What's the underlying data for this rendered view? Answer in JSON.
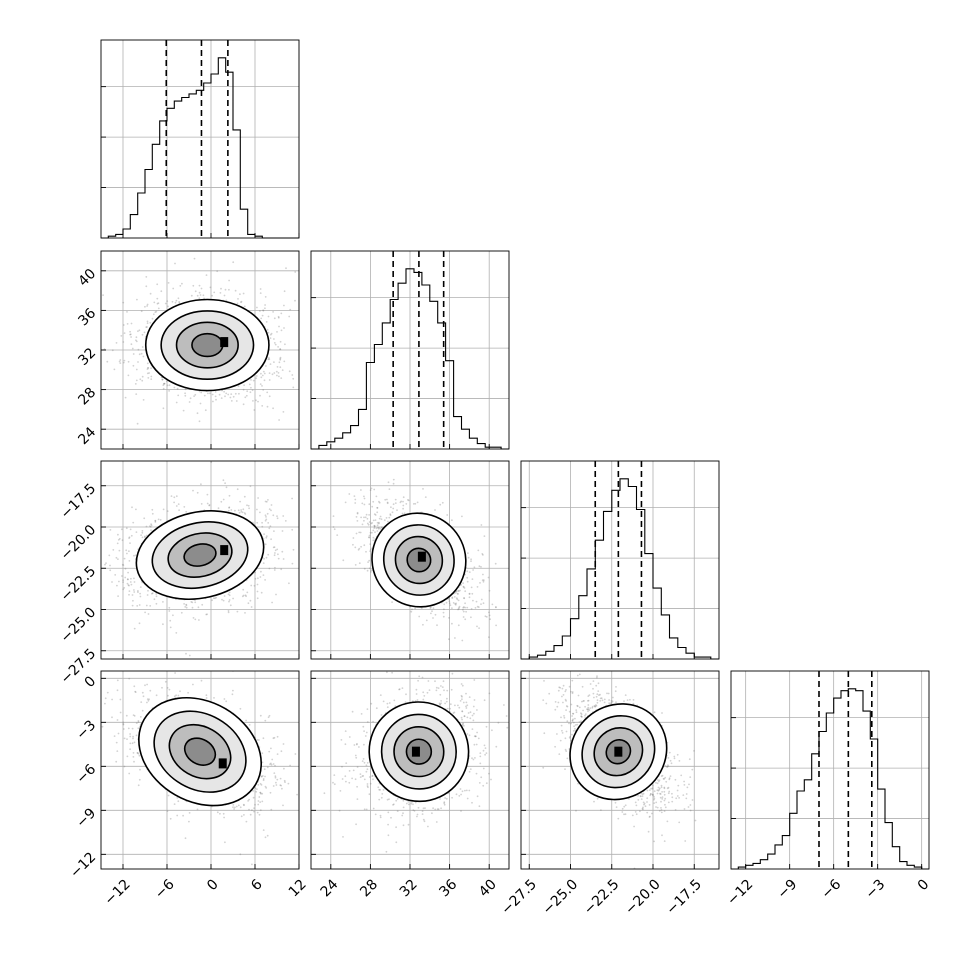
{
  "chart_data": {
    "type": "corner",
    "parameters": [
      {
        "key": "p0",
        "range": [
          -15,
          12
        ],
        "ticks": [
          -12,
          -6,
          0,
          6,
          12
        ],
        "tick_labels": [
          "−12",
          "−6",
          "0",
          "6",
          "12"
        ],
        "quantiles": [
          -6.1,
          -1.3,
          2.3
        ],
        "histogram": {
          "edges": [
            -15.0,
            -14.0,
            -13.0,
            -12.0,
            -11.0,
            -10.0,
            -9.0,
            -8.0,
            -7.0,
            -6.0,
            -5.0,
            -4.0,
            -3.0,
            -2.0,
            -1.0,
            0.0,
            1.0,
            2.0,
            3.0,
            4.0,
            5.0,
            6.0,
            7.0,
            8.0,
            9.0,
            10.0,
            11.0,
            12.0
          ],
          "counts": [
            0.0,
            0.01,
            0.02,
            0.05,
            0.13,
            0.25,
            0.38,
            0.52,
            0.65,
            0.72,
            0.76,
            0.78,
            0.8,
            0.82,
            0.86,
            0.91,
            1.0,
            0.92,
            0.6,
            0.16,
            0.02,
            0.01,
            0.0,
            0.0,
            0.0,
            0.0,
            0.0
          ]
        }
      },
      {
        "key": "p1",
        "range": [
          22,
          42
        ],
        "ticks": [
          24,
          28,
          32,
          36,
          40
        ],
        "tick_labels": [
          "24",
          "28",
          "32",
          "36",
          "40"
        ],
        "quantiles": [
          30.3,
          32.9,
          35.4
        ],
        "histogram": {
          "edges": [
            22.0,
            22.8,
            23.6,
            24.4,
            25.2,
            26.0,
            26.8,
            27.6,
            28.4,
            29.2,
            30.0,
            30.8,
            31.6,
            32.4,
            33.2,
            34.0,
            34.8,
            35.6,
            36.4,
            37.2,
            38.0,
            38.8,
            39.6,
            40.4,
            41.2,
            42.0
          ],
          "counts": [
            0.0,
            0.02,
            0.04,
            0.06,
            0.09,
            0.13,
            0.22,
            0.48,
            0.58,
            0.7,
            0.83,
            0.92,
            1.0,
            0.98,
            0.91,
            0.82,
            0.7,
            0.49,
            0.18,
            0.11,
            0.06,
            0.03,
            0.01,
            0.01,
            0.0
          ]
        }
      },
      {
        "key": "p2",
        "range": [
          -28,
          -16
        ],
        "ticks": [
          -27.5,
          -25.0,
          -22.5,
          -20.0,
          -17.5
        ],
        "tick_labels": [
          "−27.5",
          "−25.0",
          "−22.5",
          "−20.0",
          "−17.5"
        ],
        "quantiles": [
          -23.5,
          -22.1,
          -20.7
        ],
        "histogram": {
          "edges": [
            -28.0,
            -27.5,
            -27.0,
            -26.5,
            -26.0,
            -25.5,
            -25.0,
            -24.5,
            -24.0,
            -23.5,
            -23.0,
            -22.5,
            -22.0,
            -21.5,
            -21.0,
            -20.5,
            -20.0,
            -19.5,
            -19.0,
            -18.5,
            -18.0,
            -17.5,
            -17.0,
            -16.5,
            -16.0
          ],
          "counts": [
            0.0,
            0.01,
            0.02,
            0.04,
            0.07,
            0.12,
            0.21,
            0.33,
            0.47,
            0.62,
            0.77,
            0.88,
            0.94,
            0.9,
            0.78,
            0.55,
            0.37,
            0.23,
            0.11,
            0.06,
            0.03,
            0.01,
            0.01,
            0.0
          ]
        }
      },
      {
        "key": "p3",
        "range": [
          -13,
          0.5
        ],
        "ticks": [
          -12,
          -9,
          -6,
          -3,
          0
        ],
        "tick_labels": [
          "−12",
          "−9",
          "−6",
          "−3",
          "0"
        ],
        "quantiles": [
          -7.0,
          -5.0,
          -3.4
        ],
        "histogram": {
          "edges": [
            -13.0,
            -12.5,
            -12.0,
            -11.5,
            -11.0,
            -10.5,
            -10.0,
            -9.5,
            -9.0,
            -8.5,
            -8.0,
            -7.5,
            -7.0,
            -6.5,
            -6.0,
            -5.5,
            -5.0,
            -4.5,
            -4.0,
            -3.5,
            -3.0,
            -2.5,
            -2.0,
            -1.5,
            -1.0,
            -0.5,
            0.0,
            0.5
          ],
          "counts": [
            0.0,
            0.01,
            0.02,
            0.03,
            0.05,
            0.08,
            0.13,
            0.18,
            0.3,
            0.42,
            0.48,
            0.62,
            0.74,
            0.84,
            0.92,
            0.96,
            0.97,
            0.96,
            0.85,
            0.7,
            0.43,
            0.25,
            0.12,
            0.04,
            0.02,
            0.01,
            0.0
          ]
        }
      }
    ],
    "pairs": [
      {
        "x": 0,
        "y": 1,
        "mean": [
          -0.5,
          32.5
        ],
        "sd": [
          4.2,
          2.3
        ],
        "corr": 0.0,
        "mode": [
          1.8,
          32.8
        ]
      },
      {
        "x": 0,
        "y": 2,
        "mean": [
          -1.5,
          -21.7
        ],
        "sd": [
          4.4,
          1.3
        ],
        "corr": 0.2,
        "mode": [
          1.8,
          -21.4
        ]
      },
      {
        "x": 1,
        "y": 2,
        "mean": [
          32.9,
          -22.0
        ],
        "sd": [
          2.4,
          1.4
        ],
        "corr": -0.5,
        "mode": [
          33.2,
          -21.8
        ]
      },
      {
        "x": 0,
        "y": 3,
        "mean": [
          -1.5,
          -5.0
        ],
        "sd": [
          4.4,
          1.7
        ],
        "corr": -0.45,
        "mode": [
          1.6,
          -5.8
        ]
      },
      {
        "x": 1,
        "y": 3,
        "mean": [
          32.9,
          -5.0
        ],
        "sd": [
          2.5,
          1.7
        ],
        "corr": 0.15,
        "mode": [
          32.6,
          -5.0
        ]
      },
      {
        "x": 2,
        "y": 3,
        "mean": [
          -22.1,
          -5.0
        ],
        "sd": [
          1.4,
          1.7
        ],
        "corr": -0.55,
        "mode": [
          -22.1,
          -5.0
        ]
      }
    ],
    "contour_levels_sigma": [
      0.5,
      1.0,
      1.5,
      2.0
    ],
    "scatter_points_per_panel": 1400,
    "grid": true,
    "quantile_line_style": "dashed"
  }
}
